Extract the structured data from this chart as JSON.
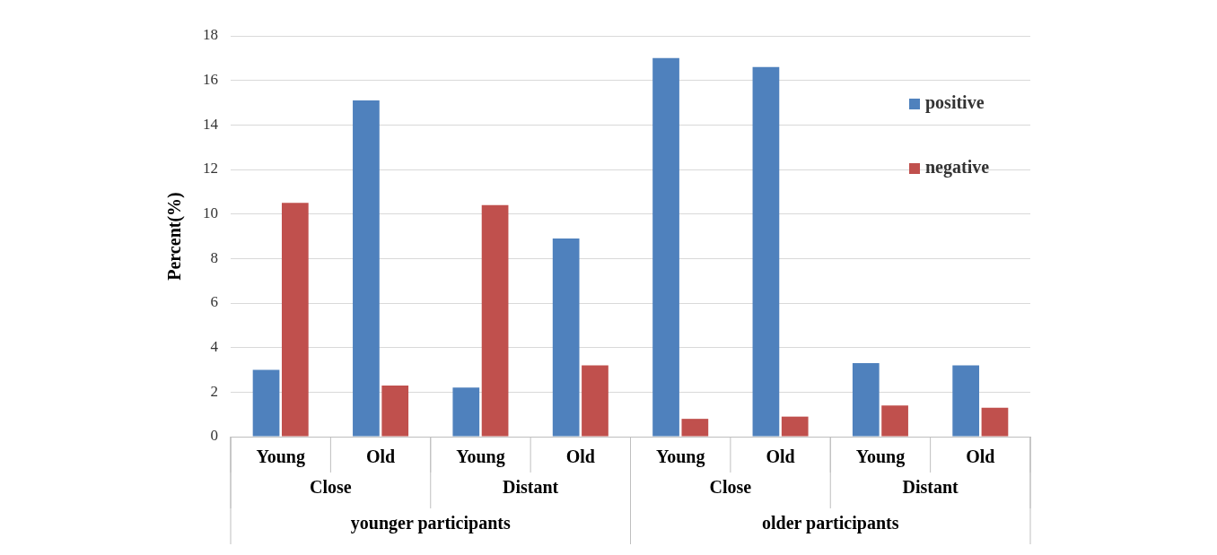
{
  "chart_data": {
    "type": "bar",
    "ylabel": "Percent(%)",
    "categories": [
      "Young",
      "Old",
      "Young",
      "Old",
      "Young",
      "Old",
      "Young",
      "Old"
    ],
    "annotations": [
      "Close",
      "Distant",
      "Close",
      "Distant",
      "younger participants",
      "older participants"
    ],
    "series": [
      {
        "name": "positive",
        "color": "#4f81bd",
        "values": [
          3.0,
          15.1,
          2.2,
          8.9,
          17.0,
          16.6,
          3.3,
          3.2
        ]
      },
      {
        "name": "negative",
        "color": "#c0504d",
        "values": [
          10.5,
          2.3,
          10.4,
          3.2,
          0.8,
          0.9,
          1.4,
          1.3
        ]
      }
    ],
    "ylim": [
      0,
      18
    ],
    "yticks": [
      0,
      2,
      4,
      6,
      8,
      10,
      12,
      14,
      16,
      18
    ],
    "grid": "y",
    "legend": "top right"
  }
}
